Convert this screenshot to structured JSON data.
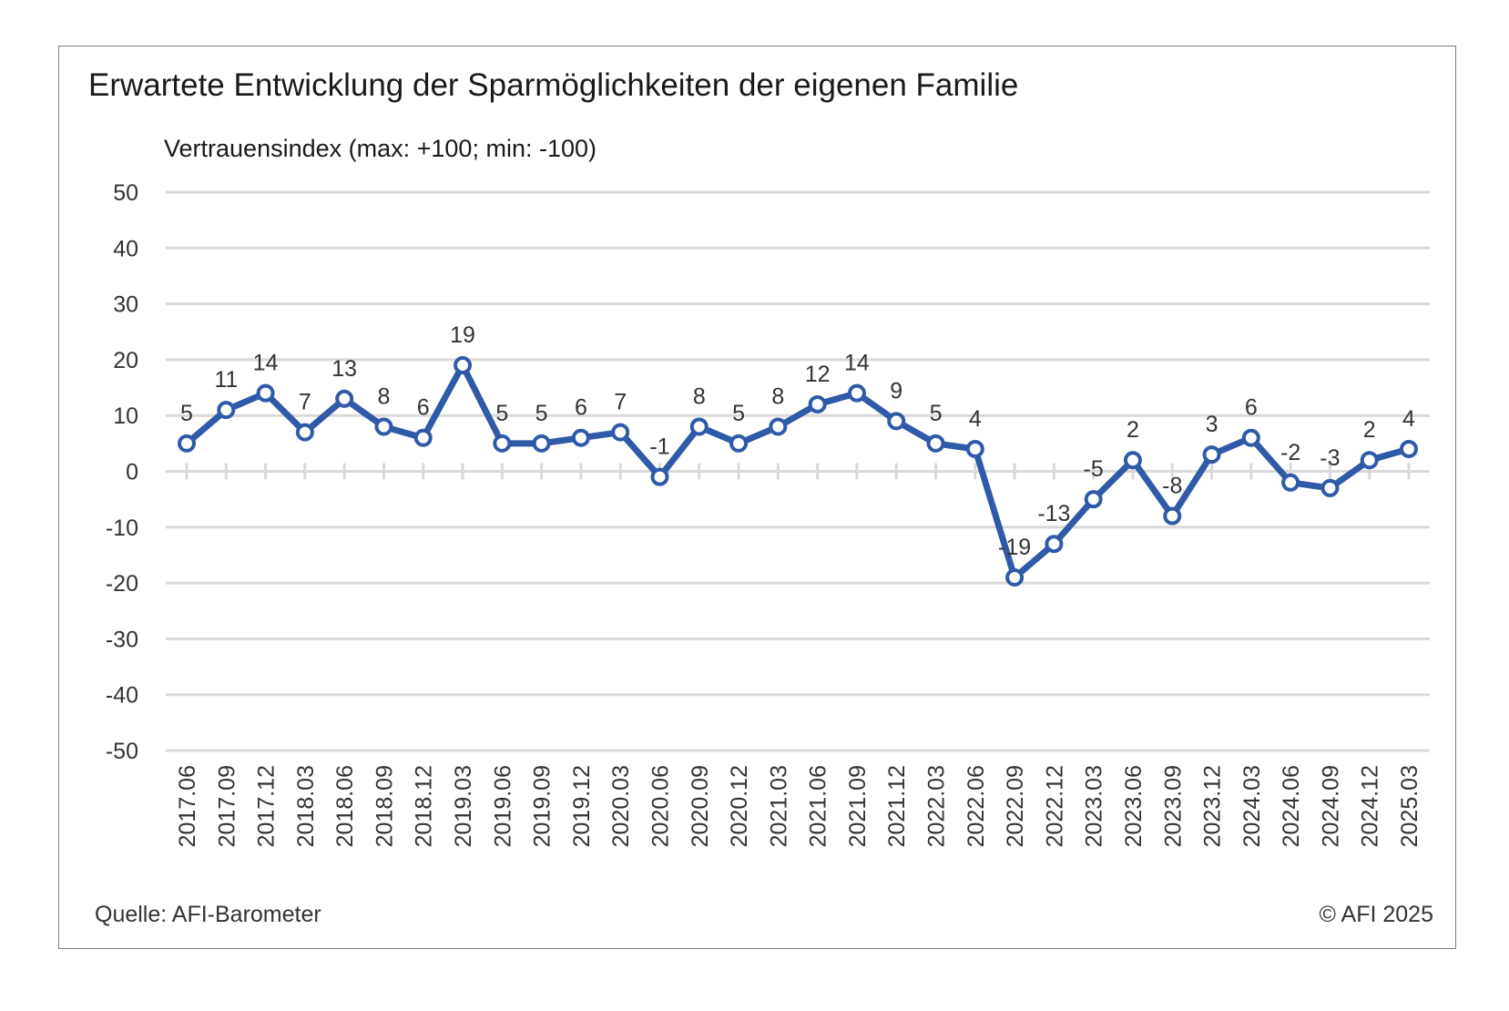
{
  "title": "Erwartete Entwicklung der Sparmöglichkeiten der eigenen Familie",
  "y_unit_label": "Vertrauensindex (max: +100; min: -100)",
  "source": "Quelle: AFI-Barometer",
  "copyright": "© AFI 2025",
  "colors": {
    "line": "#2f5aa8",
    "grid": "#d9d9d9",
    "marker_fill": "#ffffff"
  },
  "chart_data": {
    "type": "line",
    "title": "Erwartete Entwicklung der Sparmöglichkeiten der eigenen Familie",
    "ylabel": "Vertrauensindex (max: +100; min: -100)",
    "xlabel": "",
    "ylim": [
      -50,
      50
    ],
    "yticks": [
      50,
      40,
      30,
      20,
      10,
      0,
      -10,
      -20,
      -30,
      -40,
      -50
    ],
    "grid": true,
    "legend": "none",
    "categories": [
      "2017.06",
      "2017.09",
      "2017.12",
      "2018.03",
      "2018.06",
      "2018.09",
      "2018.12",
      "2019.03",
      "2019.06",
      "2019.09",
      "2019.12",
      "2020.03",
      "2020.06",
      "2020.09",
      "2020.12",
      "2021.03",
      "2021.06",
      "2021.09",
      "2021.12",
      "2022.03",
      "2022.06",
      "2022.09",
      "2022.12",
      "2023.03",
      "2023.06",
      "2023.09",
      "2023.12",
      "2024.03",
      "2024.06",
      "2024.09",
      "2024.12",
      "2025.03"
    ],
    "values": [
      5,
      11,
      14,
      7,
      13,
      8,
      6,
      19,
      5,
      5,
      6,
      7,
      -1,
      8,
      5,
      8,
      12,
      14,
      9,
      5,
      4,
      -19,
      -13,
      -5,
      2,
      -8,
      3,
      6,
      -2,
      -3,
      2,
      4
    ]
  }
}
